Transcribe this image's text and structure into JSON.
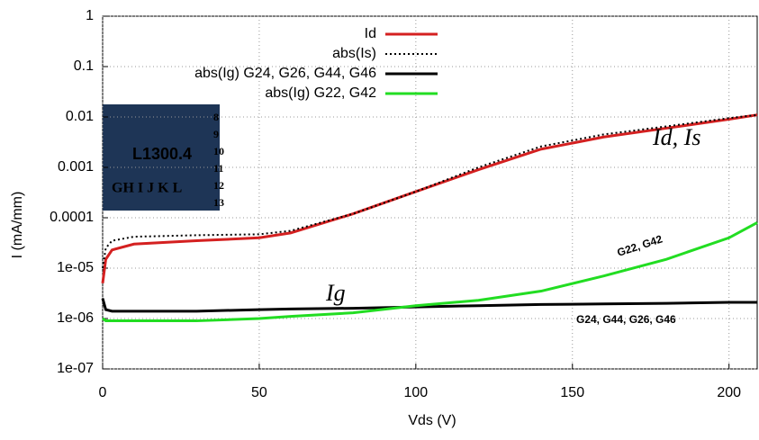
{
  "chart_data": {
    "type": "line",
    "x_label": "Vds (V)",
    "y_label": "I  (mA/mm)",
    "xlim": [
      0,
      209
    ],
    "xticks": [
      0,
      50,
      100,
      150,
      200
    ],
    "ylim": [
      1e-07,
      1
    ],
    "log_y": true,
    "grid": true,
    "legend": "top",
    "yticks": [
      {
        "value": 1e-07,
        "label": "1e-07"
      },
      {
        "value": 1e-06,
        "label": "1e-06"
      },
      {
        "value": 1e-05,
        "label": "1e-05"
      },
      0.0001,
      0.001,
      0.01,
      0.1,
      1
    ],
    "x": [
      0,
      1,
      3,
      10,
      30,
      50,
      60,
      80,
      100,
      120,
      140,
      160,
      180,
      200,
      209
    ],
    "series": [
      {
        "name": "Id",
        "color": "#d42020",
        "values": [
          5e-06,
          1.5e-05,
          2.3e-05,
          3e-05,
          3.5e-05,
          4e-05,
          5e-05,
          0.00012,
          0.00033,
          0.0009,
          0.0023,
          0.004,
          0.006,
          0.009,
          0.011
        ]
      },
      {
        "name": "abs(Is)",
        "color": "#000000",
        "dash": "dotted",
        "values": [
          1e-05,
          2.5e-05,
          3.5e-05,
          4.2e-05,
          4.5e-05,
          4.7e-05,
          5.5e-05,
          0.00012,
          0.00033,
          0.001,
          0.0026,
          0.0045,
          0.0065,
          0.0095,
          0.011
        ]
      },
      {
        "name": "abs(Ig) G24, G26, G44, G46",
        "color": "#000000",
        "values": [
          2.5e-06,
          1.5e-06,
          1.4e-06,
          1.4e-06,
          1.4e-06,
          1.5e-06,
          1.55e-06,
          1.6e-06,
          1.7e-06,
          1.8e-06,
          1.9e-06,
          1.95e-06,
          2e-06,
          2.1e-06,
          2.1e-06
        ]
      },
      {
        "name": "abs(Ig) G22, G42",
        "color": "#22dd22",
        "values": [
          1e-06,
          9e-07,
          9e-07,
          9e-07,
          9e-07,
          1e-06,
          1.1e-06,
          1.3e-06,
          1.8e-06,
          2.3e-06,
          3.5e-06,
          7e-06,
          1.5e-05,
          4e-05,
          8e-05
        ]
      }
    ],
    "annotations": [
      "Id, Is",
      "Ig",
      "G22, G42",
      "G24, G44, G26, G46"
    ],
    "inset": {
      "label": "L1300.4",
      "rows": [
        "8",
        "9",
        "10",
        "11",
        "12",
        "13"
      ],
      "columns": "GH I J K L"
    }
  }
}
